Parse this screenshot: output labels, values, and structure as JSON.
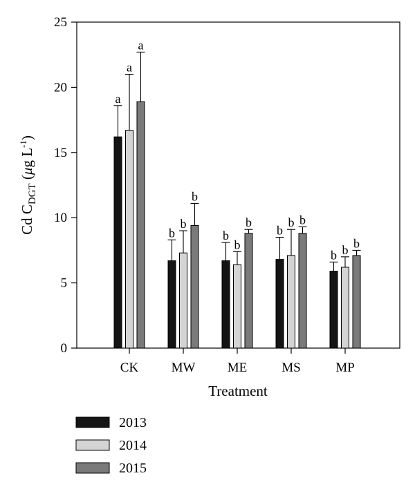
{
  "chart_data": {
    "type": "bar",
    "title": "",
    "xlabel": "Treatment",
    "ylabel": {
      "main": "Cd C",
      "sub": "DGT",
      "open": " (",
      "mu": "μ",
      "unit": "g L",
      "sup": "-1",
      "close": ")"
    },
    "categories": [
      "CK",
      "MW",
      "ME",
      "MS",
      "MP"
    ],
    "ylim": [
      0,
      25
    ],
    "yticks": [
      0,
      5,
      10,
      15,
      20,
      25
    ],
    "grid": false,
    "legend_position": "bottom-left",
    "series": [
      {
        "name": "2013",
        "color": "#141414",
        "values": [
          16.2,
          6.7,
          6.7,
          6.8,
          5.9
        ],
        "errors": [
          2.4,
          1.6,
          1.4,
          1.7,
          0.7
        ],
        "labels": [
          "a",
          "b",
          "b",
          "b",
          "b"
        ]
      },
      {
        "name": "2014",
        "color": "#d4d4d4",
        "values": [
          16.7,
          7.3,
          6.4,
          7.1,
          6.2
        ],
        "errors": [
          4.3,
          1.7,
          1.0,
          2.0,
          0.8
        ],
        "labels": [
          "a",
          "b",
          "b",
          "b",
          "b"
        ]
      },
      {
        "name": "2015",
        "color": "#7a7a7a",
        "values": [
          18.9,
          9.4,
          8.8,
          8.8,
          7.1
        ],
        "errors": [
          3.8,
          1.7,
          0.3,
          0.5,
          0.4
        ],
        "labels": [
          "a",
          "b",
          "b",
          "b",
          "b"
        ]
      }
    ]
  }
}
